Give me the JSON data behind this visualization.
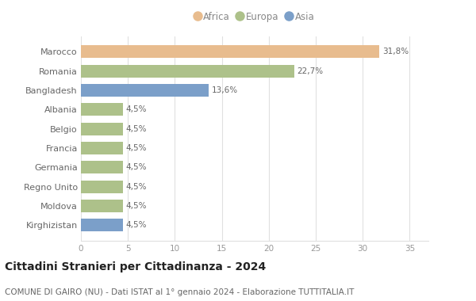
{
  "categories": [
    "Kirghizistan",
    "Moldova",
    "Regno Unito",
    "Germania",
    "Francia",
    "Belgio",
    "Albania",
    "Bangladesh",
    "Romania",
    "Marocco"
  ],
  "values": [
    4.5,
    4.5,
    4.5,
    4.5,
    4.5,
    4.5,
    4.5,
    13.6,
    22.7,
    31.8
  ],
  "colors": [
    "#7b9fc9",
    "#adc18a",
    "#adc18a",
    "#adc18a",
    "#adc18a",
    "#adc18a",
    "#adc18a",
    "#7b9fc9",
    "#adc18a",
    "#e8bc8e"
  ],
  "labels": [
    "4,5%",
    "4,5%",
    "4,5%",
    "4,5%",
    "4,5%",
    "4,5%",
    "4,5%",
    "13,6%",
    "22,7%",
    "31,8%"
  ],
  "legend": [
    {
      "label": "Africa",
      "color": "#e8bc8e"
    },
    {
      "label": "Europa",
      "color": "#adc18a"
    },
    {
      "label": "Asia",
      "color": "#7b9fc9"
    }
  ],
  "xlim": [
    0,
    37
  ],
  "xticks": [
    0,
    5,
    10,
    15,
    20,
    25,
    30,
    35
  ],
  "title": "Cittadini Stranieri per Cittadinanza - 2024",
  "subtitle": "COMUNE DI GAIRO (NU) - Dati ISTAT al 1° gennaio 2024 - Elaborazione TUTTITALIA.IT",
  "title_fontsize": 10,
  "subtitle_fontsize": 7.5,
  "background_color": "#ffffff",
  "bar_height": 0.65,
  "grid_color": "#e0e0e0",
  "label_color": "#666666",
  "ytick_color": "#666666",
  "xtick_color": "#999999"
}
